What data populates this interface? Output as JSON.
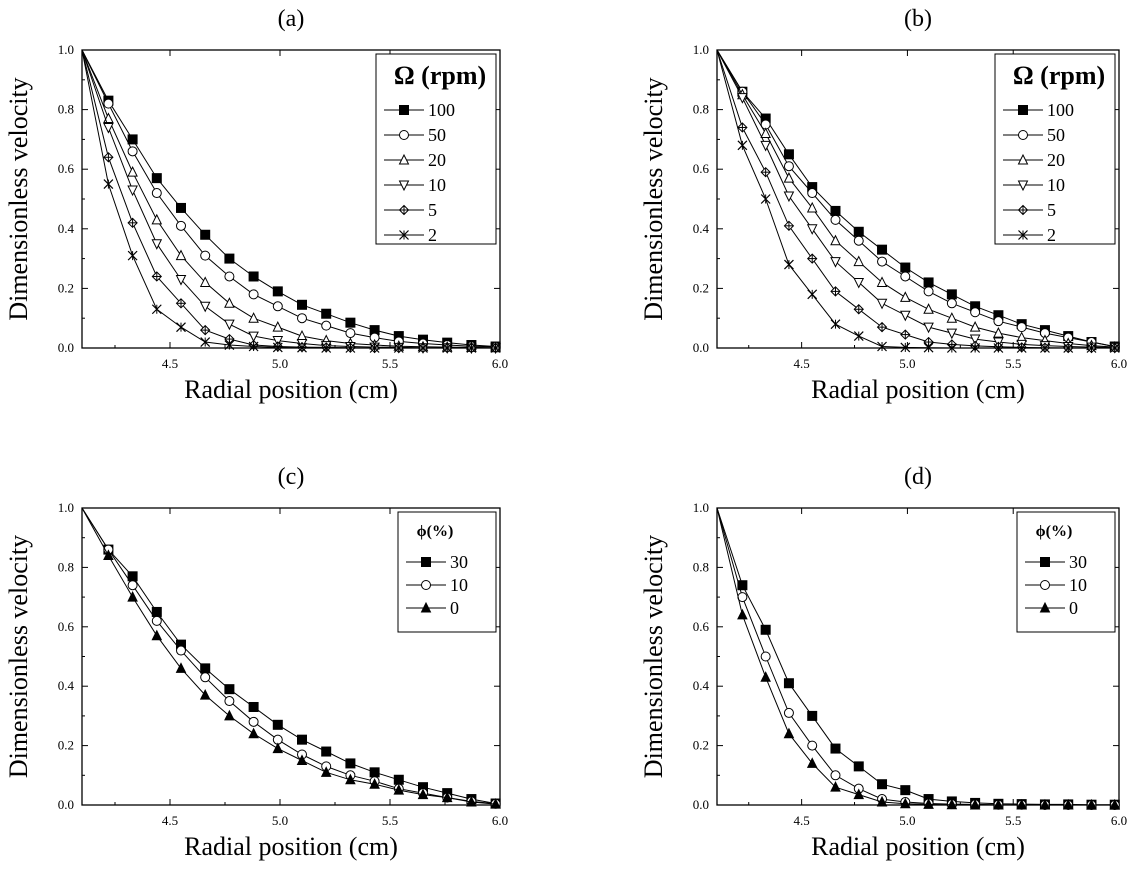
{
  "chart_data": [
    {
      "panel_label": "(a)",
      "type": "line",
      "xlabel": "Radial position (cm)",
      "ylabel": "Dimensionless velocity",
      "xlim": [
        4.1,
        6.0
      ],
      "ylim": [
        0.0,
        1.0
      ],
      "xticks": [
        "4.5",
        "5.0",
        "5.5",
        "6.0"
      ],
      "yticks": [
        "0.0",
        "0.2",
        "0.4",
        "0.6",
        "0.8",
        "1.0"
      ],
      "legend_title": "Ω (rpm)",
      "legend_position": "top-right",
      "series": [
        {
          "name": "100",
          "marker": "filled-square",
          "x": [
            4.1,
            4.22,
            4.33,
            4.44,
            4.55,
            4.66,
            4.77,
            4.88,
            4.99,
            5.1,
            5.21,
            5.32,
            5.43,
            5.54,
            5.65,
            5.76,
            5.87,
            5.98
          ],
          "y": [
            1.0,
            0.83,
            0.7,
            0.57,
            0.47,
            0.38,
            0.3,
            0.24,
            0.19,
            0.145,
            0.115,
            0.085,
            0.06,
            0.04,
            0.028,
            0.018,
            0.01,
            0.005
          ]
        },
        {
          "name": "50",
          "marker": "open-circle",
          "x": [
            4.1,
            4.22,
            4.33,
            4.44,
            4.55,
            4.66,
            4.77,
            4.88,
            4.99,
            5.1,
            5.21,
            5.32,
            5.43,
            5.54,
            5.65,
            5.76,
            5.87,
            5.98
          ],
          "y": [
            1.0,
            0.82,
            0.66,
            0.52,
            0.41,
            0.31,
            0.24,
            0.18,
            0.14,
            0.1,
            0.075,
            0.05,
            0.035,
            0.022,
            0.015,
            0.01,
            0.006,
            0.004
          ]
        },
        {
          "name": "20",
          "marker": "open-triangle-up",
          "x": [
            4.1,
            4.22,
            4.33,
            4.44,
            4.55,
            4.66,
            4.77,
            4.88,
            4.99,
            5.1,
            5.21,
            5.32,
            5.43,
            5.54,
            5.65,
            5.76,
            5.87,
            5.98
          ],
          "y": [
            1.0,
            0.77,
            0.59,
            0.43,
            0.31,
            0.22,
            0.15,
            0.1,
            0.07,
            0.04,
            0.025,
            0.015,
            0.01,
            0.006,
            0.004,
            0.003,
            0.002,
            0.001
          ]
        },
        {
          "name": "10",
          "marker": "open-triangle-down",
          "x": [
            4.1,
            4.22,
            4.33,
            4.44,
            4.55,
            4.66,
            4.77,
            4.88,
            4.99,
            5.1,
            5.21,
            5.32,
            5.43,
            5.54,
            5.65,
            5.76,
            5.87,
            5.98
          ],
          "y": [
            1.0,
            0.74,
            0.53,
            0.35,
            0.23,
            0.14,
            0.08,
            0.04,
            0.025,
            0.015,
            0.008,
            0.005,
            0.003,
            0.002,
            0.001,
            0.001,
            0.0,
            0.0
          ]
        },
        {
          "name": "5",
          "marker": "crossed-diamond",
          "x": [
            4.1,
            4.22,
            4.33,
            4.44,
            4.55,
            4.66,
            4.77,
            4.88,
            4.99,
            5.1,
            5.21,
            5.32,
            5.43,
            5.54,
            5.65,
            5.76,
            5.87,
            5.98
          ],
          "y": [
            1.0,
            0.64,
            0.42,
            0.24,
            0.15,
            0.06,
            0.03,
            0.01,
            0.005,
            0.003,
            0.002,
            0.001,
            0.0,
            0.0,
            0.0,
            0.0,
            0.0,
            0.0
          ]
        },
        {
          "name": "2",
          "marker": "asterisk-x",
          "x": [
            4.1,
            4.22,
            4.33,
            4.44,
            4.55,
            4.66,
            4.77,
            4.88,
            4.99,
            5.1,
            5.21,
            5.32,
            5.43,
            5.54,
            5.65,
            5.76,
            5.87,
            5.98
          ],
          "y": [
            1.0,
            0.55,
            0.31,
            0.13,
            0.07,
            0.02,
            0.01,
            0.005,
            0.002,
            0.001,
            0.0,
            0.0,
            0.0,
            0.0,
            0.0,
            0.0,
            0.0,
            0.0
          ]
        }
      ]
    },
    {
      "panel_label": "(b)",
      "type": "line",
      "xlabel": "Radial position (cm)",
      "ylabel": "Dimensionless velocity",
      "xlim": [
        4.1,
        6.0
      ],
      "ylim": [
        0.0,
        1.0
      ],
      "xticks": [
        "4.5",
        "5.0",
        "5.5",
        "6.0"
      ],
      "yticks": [
        "0.0",
        "0.2",
        "0.4",
        "0.6",
        "0.8",
        "1.0"
      ],
      "legend_title": "Ω (rpm)",
      "legend_position": "top-right",
      "series": [
        {
          "name": "100",
          "marker": "filled-square",
          "x": [
            4.1,
            4.22,
            4.33,
            4.44,
            4.55,
            4.66,
            4.77,
            4.88,
            4.99,
            5.1,
            5.21,
            5.32,
            5.43,
            5.54,
            5.65,
            5.76,
            5.87,
            5.98
          ],
          "y": [
            1.0,
            0.86,
            0.77,
            0.65,
            0.54,
            0.46,
            0.39,
            0.33,
            0.27,
            0.22,
            0.18,
            0.14,
            0.11,
            0.08,
            0.06,
            0.04,
            0.02,
            0.005
          ]
        },
        {
          "name": "50",
          "marker": "open-circle",
          "x": [
            4.1,
            4.22,
            4.33,
            4.44,
            4.55,
            4.66,
            4.77,
            4.88,
            4.99,
            5.1,
            5.21,
            5.32,
            5.43,
            5.54,
            5.65,
            5.76,
            5.87,
            5.98
          ],
          "y": [
            1.0,
            0.86,
            0.75,
            0.61,
            0.52,
            0.43,
            0.36,
            0.29,
            0.24,
            0.19,
            0.15,
            0.12,
            0.09,
            0.07,
            0.05,
            0.035,
            0.02,
            0.004
          ]
        },
        {
          "name": "20",
          "marker": "open-triangle-up",
          "x": [
            4.1,
            4.22,
            4.33,
            4.44,
            4.55,
            4.66,
            4.77,
            4.88,
            4.99,
            5.1,
            5.21,
            5.32,
            5.43,
            5.54,
            5.65,
            5.76,
            5.87,
            5.98
          ],
          "y": [
            1.0,
            0.85,
            0.72,
            0.57,
            0.47,
            0.36,
            0.29,
            0.22,
            0.17,
            0.13,
            0.1,
            0.07,
            0.05,
            0.035,
            0.025,
            0.015,
            0.008,
            0.003
          ]
        },
        {
          "name": "10",
          "marker": "open-triangle-down",
          "x": [
            4.1,
            4.22,
            4.33,
            4.44,
            4.55,
            4.66,
            4.77,
            4.88,
            4.99,
            5.1,
            5.21,
            5.32,
            5.43,
            5.54,
            5.65,
            5.76,
            5.87,
            5.98
          ],
          "y": [
            1.0,
            0.84,
            0.68,
            0.51,
            0.4,
            0.29,
            0.22,
            0.15,
            0.11,
            0.07,
            0.05,
            0.03,
            0.02,
            0.012,
            0.008,
            0.005,
            0.003,
            0.002
          ]
        },
        {
          "name": "5",
          "marker": "crossed-diamond",
          "x": [
            4.1,
            4.22,
            4.33,
            4.44,
            4.55,
            4.66,
            4.77,
            4.88,
            4.99,
            5.1,
            5.21,
            5.32,
            5.43,
            5.54,
            5.65,
            5.76,
            5.87,
            5.98
          ],
          "y": [
            1.0,
            0.74,
            0.59,
            0.41,
            0.3,
            0.19,
            0.13,
            0.07,
            0.045,
            0.02,
            0.012,
            0.007,
            0.004,
            0.002,
            0.001,
            0.0,
            0.0,
            0.0
          ]
        },
        {
          "name": "2",
          "marker": "asterisk-x",
          "x": [
            4.1,
            4.22,
            4.33,
            4.44,
            4.55,
            4.66,
            4.77,
            4.88,
            4.99,
            5.1,
            5.21,
            5.32,
            5.43,
            5.54,
            5.65,
            5.76,
            5.87,
            5.98
          ],
          "y": [
            1.0,
            0.68,
            0.5,
            0.28,
            0.18,
            0.08,
            0.04,
            0.005,
            0.002,
            0.001,
            0.0,
            0.0,
            0.0,
            0.0,
            0.0,
            0.0,
            0.0,
            0.0
          ]
        }
      ]
    },
    {
      "panel_label": "(c)",
      "type": "line",
      "xlabel": "Radial position (cm)",
      "ylabel": "Dimensionless velocity",
      "xlim": [
        4.1,
        6.0
      ],
      "ylim": [
        0.0,
        1.0
      ],
      "xticks": [
        "4.5",
        "5.0",
        "5.5",
        "6.0"
      ],
      "yticks": [
        "0.0",
        "0.2",
        "0.4",
        "0.6",
        "0.8",
        "1.0"
      ],
      "legend_title": "ϕ(%)",
      "legend_position": "top-right",
      "series": [
        {
          "name": "30",
          "marker": "filled-square",
          "x": [
            4.1,
            4.22,
            4.33,
            4.44,
            4.55,
            4.66,
            4.77,
            4.88,
            4.99,
            5.1,
            5.21,
            5.32,
            5.43,
            5.54,
            5.65,
            5.76,
            5.87,
            5.98
          ],
          "y": [
            1.0,
            0.86,
            0.77,
            0.65,
            0.54,
            0.46,
            0.39,
            0.33,
            0.27,
            0.22,
            0.18,
            0.14,
            0.11,
            0.085,
            0.06,
            0.04,
            0.02,
            0.005
          ]
        },
        {
          "name": "10",
          "marker": "open-circle",
          "x": [
            4.1,
            4.22,
            4.33,
            4.44,
            4.55,
            4.66,
            4.77,
            4.88,
            4.99,
            5.1,
            5.21,
            5.32,
            5.43,
            5.54,
            5.65,
            5.76,
            5.87,
            5.98
          ],
          "y": [
            1.0,
            0.86,
            0.74,
            0.62,
            0.52,
            0.43,
            0.35,
            0.28,
            0.22,
            0.17,
            0.13,
            0.1,
            0.08,
            0.055,
            0.04,
            0.025,
            0.012,
            0.004
          ]
        },
        {
          "name": "0",
          "marker": "filled-triangle-up",
          "x": [
            4.1,
            4.22,
            4.33,
            4.44,
            4.55,
            4.66,
            4.77,
            4.88,
            4.99,
            5.1,
            5.21,
            5.32,
            5.43,
            5.54,
            5.65,
            5.76,
            5.87,
            5.98
          ],
          "y": [
            1.0,
            0.84,
            0.7,
            0.57,
            0.46,
            0.37,
            0.3,
            0.24,
            0.19,
            0.15,
            0.11,
            0.085,
            0.07,
            0.05,
            0.035,
            0.025,
            0.01,
            0.003
          ]
        }
      ]
    },
    {
      "panel_label": "(d)",
      "type": "line",
      "xlabel": "Radial position (cm)",
      "ylabel": "Dimensionless velocity",
      "xlim": [
        4.1,
        6.0
      ],
      "ylim": [
        0.0,
        1.0
      ],
      "xticks": [
        "4.5",
        "5.0",
        "5.5",
        "6.0"
      ],
      "yticks": [
        "0.0",
        "0.2",
        "0.4",
        "0.6",
        "0.8",
        "1.0"
      ],
      "legend_title": "ϕ(%)",
      "legend_position": "top-right",
      "series": [
        {
          "name": "30",
          "marker": "filled-square",
          "x": [
            4.1,
            4.22,
            4.33,
            4.44,
            4.55,
            4.66,
            4.77,
            4.88,
            4.99,
            5.1,
            5.21,
            5.32,
            5.43,
            5.54,
            5.65,
            5.76,
            5.87,
            5.98
          ],
          "y": [
            1.0,
            0.74,
            0.59,
            0.41,
            0.3,
            0.19,
            0.13,
            0.07,
            0.05,
            0.02,
            0.012,
            0.007,
            0.004,
            0.003,
            0.002,
            0.002,
            0.001,
            0.001
          ]
        },
        {
          "name": "10",
          "marker": "open-circle",
          "x": [
            4.1,
            4.22,
            4.33,
            4.44,
            4.55,
            4.66,
            4.77,
            4.88,
            4.99,
            5.1,
            5.21,
            5.32,
            5.43,
            5.54,
            5.65,
            5.76,
            5.87,
            5.98
          ],
          "y": [
            1.0,
            0.7,
            0.5,
            0.31,
            0.2,
            0.1,
            0.055,
            0.02,
            0.01,
            0.005,
            0.003,
            0.002,
            0.001,
            0.001,
            0.0,
            0.0,
            0.0,
            0.0
          ]
        },
        {
          "name": "0",
          "marker": "filled-triangle-up",
          "x": [
            4.1,
            4.22,
            4.33,
            4.44,
            4.55,
            4.66,
            4.77,
            4.88,
            4.99,
            5.1,
            5.21,
            5.32,
            5.43,
            5.54,
            5.65,
            5.76,
            5.87,
            5.98
          ],
          "y": [
            1.0,
            0.64,
            0.43,
            0.24,
            0.14,
            0.06,
            0.035,
            0.01,
            0.004,
            0.002,
            0.001,
            0.0,
            0.0,
            0.0,
            0.0,
            0.0,
            0.0,
            0.0
          ]
        }
      ]
    }
  ]
}
